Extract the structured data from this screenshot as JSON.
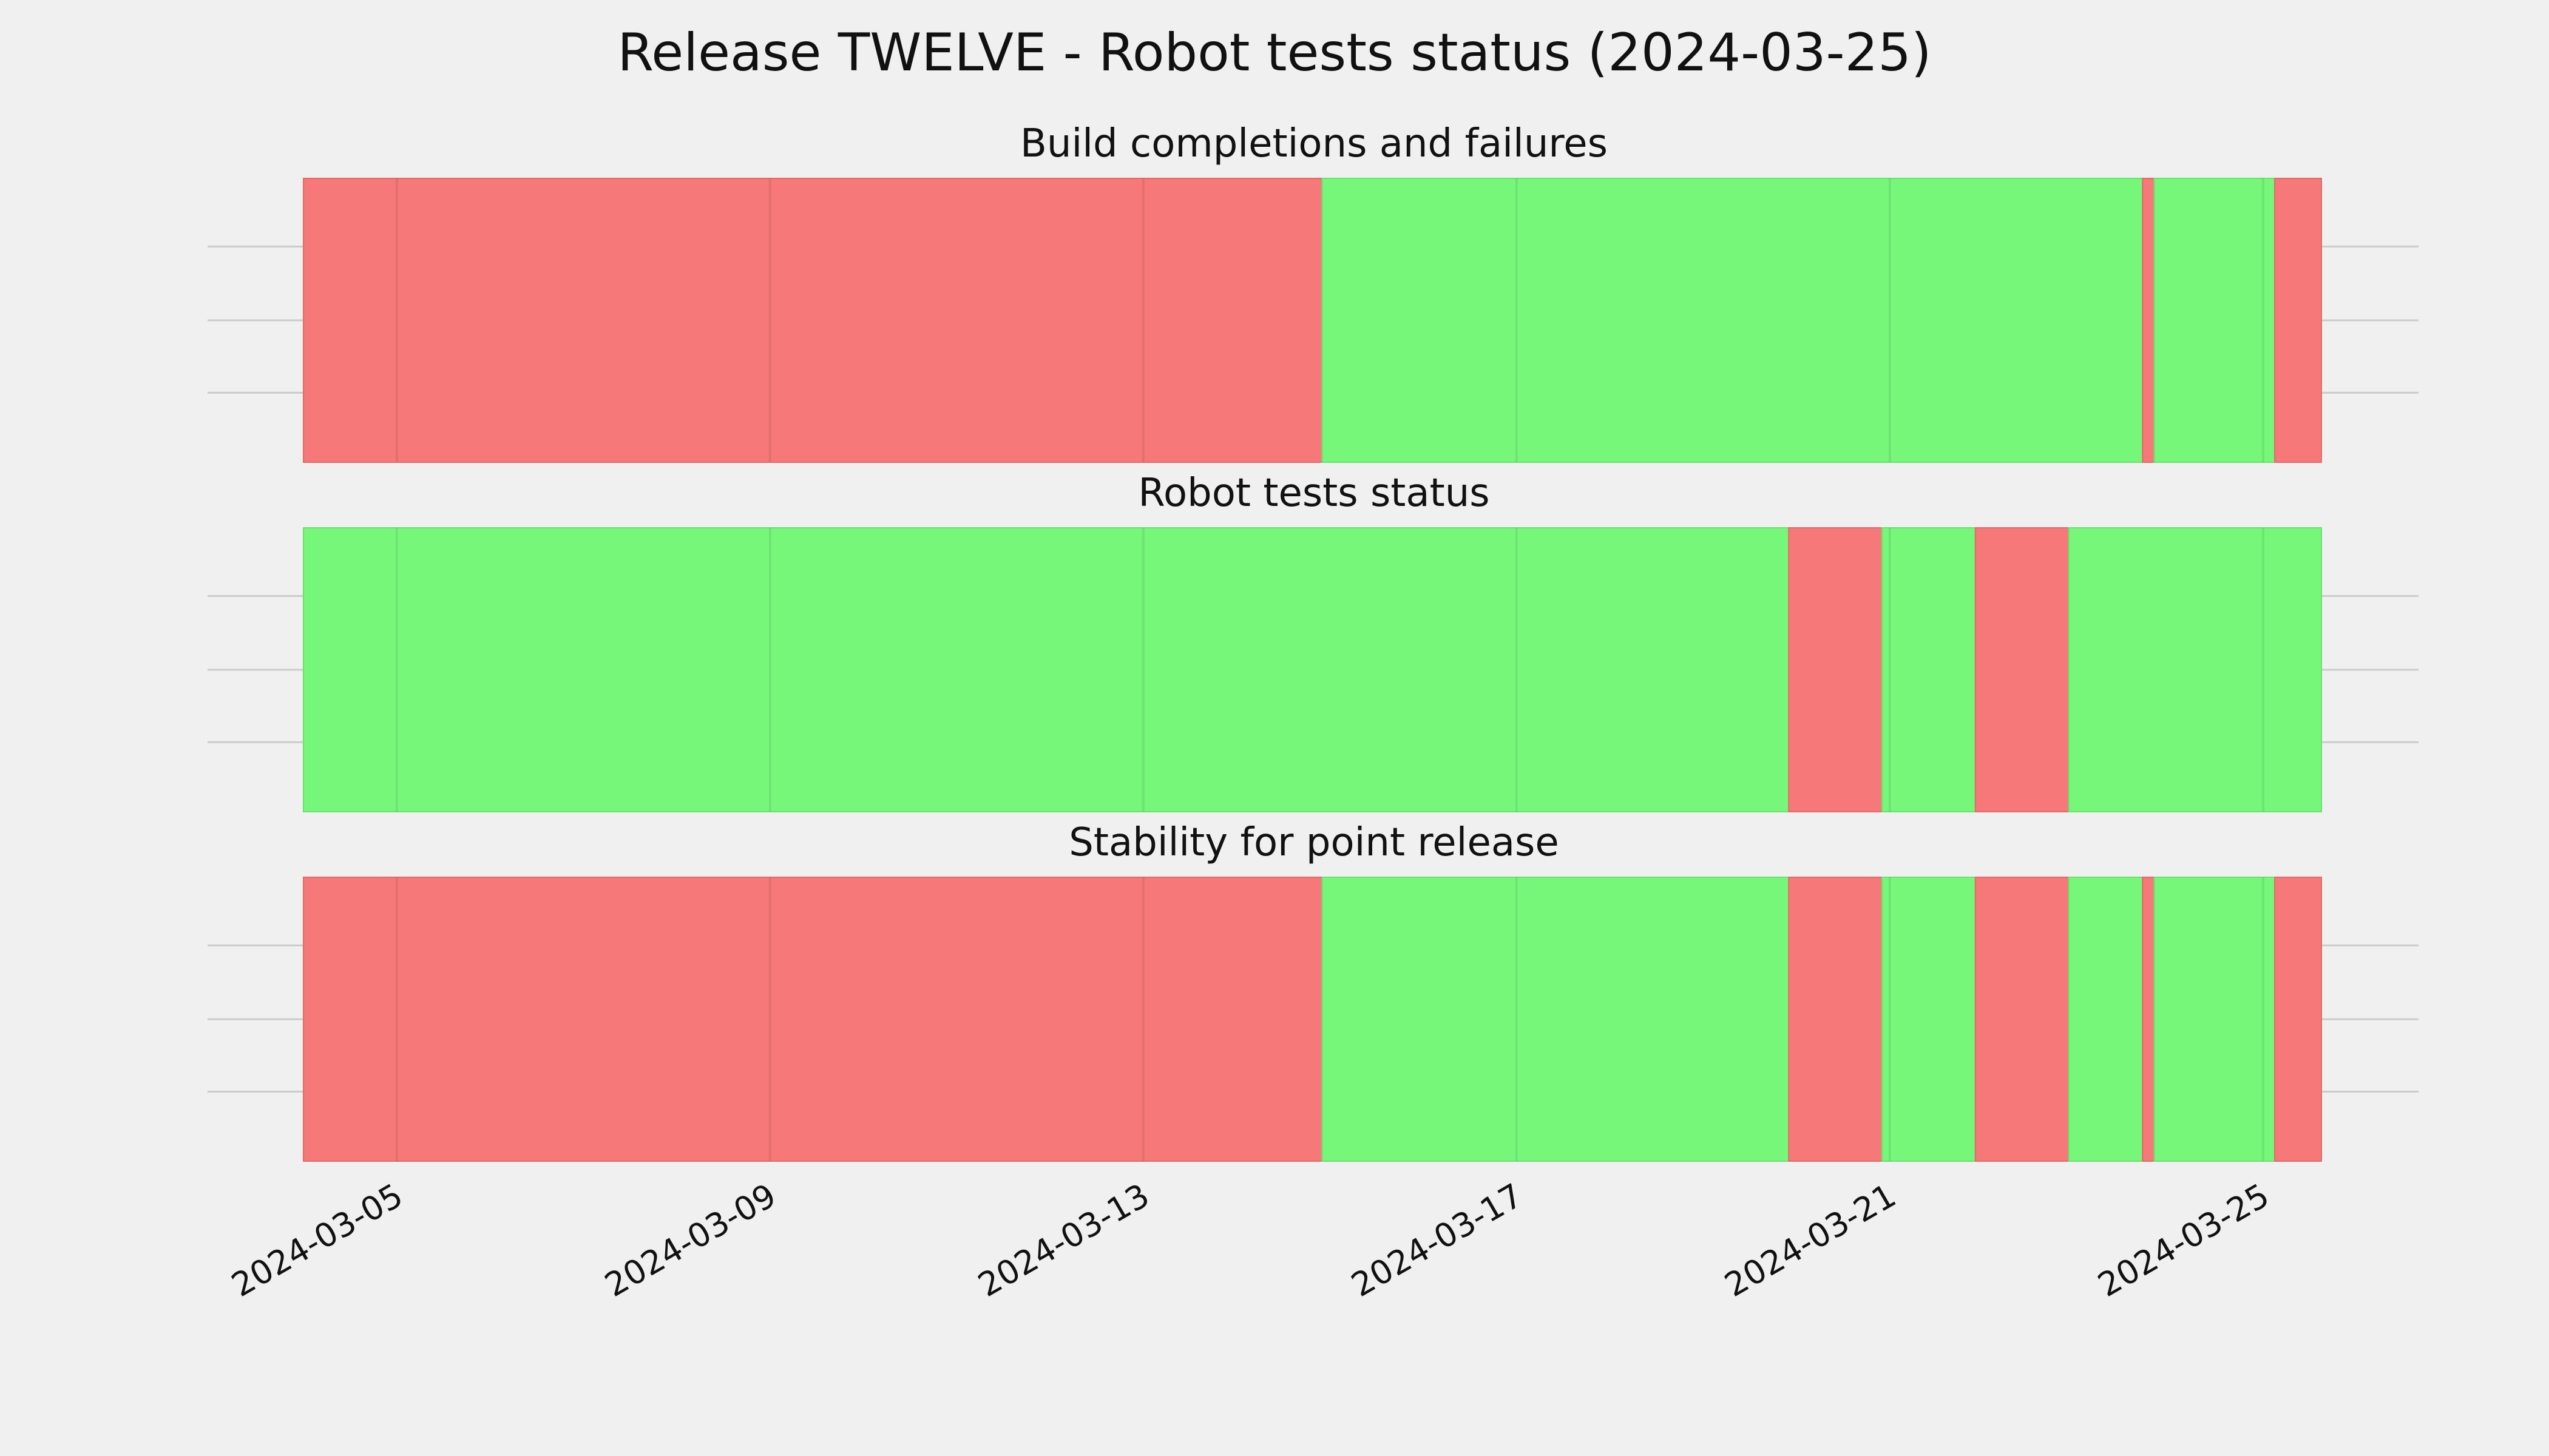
{
  "chart_data": {
    "type": "timeline",
    "title": "Release TWELVE - Robot tests status (2024-03-25)",
    "x_axis": {
      "type": "date",
      "range": [
        "2024-03-04T00:00",
        "2024-03-25T15:00"
      ],
      "ticks": [
        "2024-03-05",
        "2024-03-09",
        "2024-03-13",
        "2024-03-17",
        "2024-03-21",
        "2024-03-25"
      ]
    },
    "grid": true,
    "colors": {
      "pass": "#76f77a",
      "fail": "#f67878",
      "background": "#f0f0f0"
    },
    "panels": [
      {
        "title": "Build completions and failures",
        "segments": [
          {
            "start": "2024-03-04T00:00",
            "end": "2024-03-14T22:00",
            "status": "fail"
          },
          {
            "start": "2024-03-14T22:00",
            "end": "2024-03-23T17:00",
            "status": "pass"
          },
          {
            "start": "2024-03-23T17:00",
            "end": "2024-03-23T20:00",
            "status": "fail"
          },
          {
            "start": "2024-03-23T20:00",
            "end": "2024-03-25T03:00",
            "status": "pass"
          },
          {
            "start": "2024-03-25T03:00",
            "end": "2024-03-25T15:00",
            "status": "fail"
          }
        ]
      },
      {
        "title": "Robot tests status",
        "segments": [
          {
            "start": "2024-03-04T00:00",
            "end": "2024-03-19T22:00",
            "status": "pass"
          },
          {
            "start": "2024-03-19T22:00",
            "end": "2024-03-20T22:00",
            "status": "fail"
          },
          {
            "start": "2024-03-20T22:00",
            "end": "2024-03-21T22:00",
            "status": "pass"
          },
          {
            "start": "2024-03-21T22:00",
            "end": "2024-03-22T22:00",
            "status": "fail"
          },
          {
            "start": "2024-03-22T22:00",
            "end": "2024-03-25T15:00",
            "status": "pass"
          }
        ]
      },
      {
        "title": "Stability for point release",
        "segments": [
          {
            "start": "2024-03-04T00:00",
            "end": "2024-03-14T22:00",
            "status": "fail"
          },
          {
            "start": "2024-03-14T22:00",
            "end": "2024-03-19T22:00",
            "status": "pass"
          },
          {
            "start": "2024-03-19T22:00",
            "end": "2024-03-20T22:00",
            "status": "fail"
          },
          {
            "start": "2024-03-20T22:00",
            "end": "2024-03-21T22:00",
            "status": "pass"
          },
          {
            "start": "2024-03-21T22:00",
            "end": "2024-03-22T22:00",
            "status": "fail"
          },
          {
            "start": "2024-03-22T22:00",
            "end": "2024-03-23T17:00",
            "status": "pass"
          },
          {
            "start": "2024-03-23T17:00",
            "end": "2024-03-23T20:00",
            "status": "fail"
          },
          {
            "start": "2024-03-23T20:00",
            "end": "2024-03-25T03:00",
            "status": "pass"
          },
          {
            "start": "2024-03-25T03:00",
            "end": "2024-03-25T15:00",
            "status": "fail"
          }
        ]
      }
    ]
  }
}
